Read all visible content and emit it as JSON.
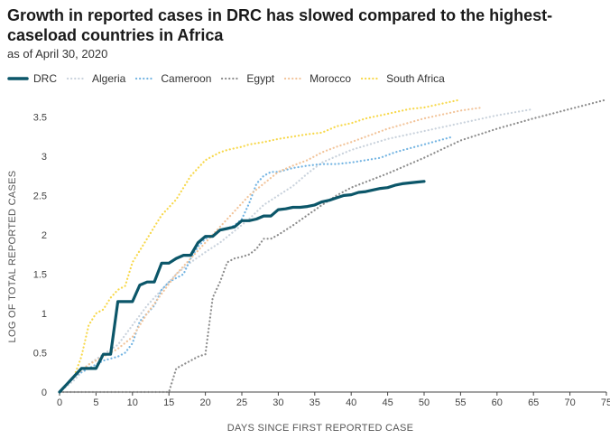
{
  "title": "Growth in reported cases in DRC has slowed compared to the highest-caseload countries in Africa",
  "subtitle": "as of April 30, 2020",
  "colors": {
    "DRC": "#0b5669",
    "Algeria": "#c9d2dc",
    "Cameroon": "#73b4e2",
    "Egypt": "#8c8c8c",
    "Morocco": "#f2c49a",
    "South Africa": "#f7d84a"
  },
  "chart_data": {
    "type": "line",
    "xlabel": "DAYS SINCE FIRST REPORTED CASE",
    "ylabel": "LOG OF TOTAL REPORTED CASES",
    "xlim": [
      0,
      75
    ],
    "ylim": [
      0,
      3.7
    ],
    "xticks": [
      0,
      5,
      10,
      15,
      20,
      25,
      30,
      35,
      40,
      45,
      50,
      55,
      60,
      65,
      70,
      75
    ],
    "yticks": [
      0,
      0.5,
      1,
      1.5,
      2,
      2.5,
      3,
      3.5
    ],
    "ytick_labels": [
      "0",
      "0.5",
      "1",
      "1.5",
      "2",
      "2.5",
      "3",
      "3.5"
    ],
    "grid": false,
    "legend_position": "top",
    "series": [
      {
        "name": "DRC",
        "style": "solid",
        "x": [
          0,
          1,
          2,
          3,
          4,
          5,
          6,
          7,
          8,
          9,
          10,
          11,
          12,
          13,
          14,
          15,
          16,
          17,
          18,
          19,
          20,
          21,
          22,
          23,
          24,
          25,
          26,
          27,
          28,
          29,
          30,
          31,
          32,
          33,
          34,
          35,
          36,
          37,
          38,
          39,
          40,
          41,
          42,
          43,
          44,
          45,
          46,
          47,
          48,
          49,
          50
        ],
        "y": [
          0,
          0.1,
          0.2,
          0.3,
          0.3,
          0.3,
          0.48,
          0.48,
          1.15,
          1.15,
          1.15,
          1.36,
          1.4,
          1.4,
          1.64,
          1.64,
          1.7,
          1.74,
          1.74,
          1.9,
          1.98,
          1.98,
          2.06,
          2.08,
          2.1,
          2.18,
          2.18,
          2.2,
          2.24,
          2.24,
          2.32,
          2.33,
          2.35,
          2.35,
          2.36,
          2.38,
          2.42,
          2.44,
          2.47,
          2.5,
          2.51,
          2.54,
          2.55,
          2.57,
          2.59,
          2.6,
          2.63,
          2.65,
          2.66,
          2.67,
          2.68
        ]
      },
      {
        "name": "Algeria",
        "style": "dotted",
        "x": [
          0,
          2,
          4,
          6,
          8,
          10,
          12,
          14,
          16,
          18,
          20,
          22,
          24,
          26,
          28,
          30,
          32,
          34,
          36,
          38,
          40,
          45,
          50,
          55,
          60,
          65
        ],
        "y": [
          0,
          0.15,
          0.35,
          0.48,
          0.6,
          0.85,
          1.1,
          1.3,
          1.5,
          1.65,
          1.78,
          1.9,
          2.05,
          2.2,
          2.38,
          2.5,
          2.62,
          2.78,
          2.92,
          3.0,
          3.08,
          3.22,
          3.32,
          3.42,
          3.52,
          3.6
        ]
      },
      {
        "name": "Cameroon",
        "style": "dotted",
        "x": [
          0,
          2,
          4,
          6,
          8,
          9,
          10,
          11,
          12,
          13,
          14,
          15,
          16,
          17,
          18,
          19,
          20,
          21,
          22,
          23,
          24,
          25,
          26,
          27,
          28,
          29,
          30,
          32,
          34,
          36,
          38,
          40,
          42,
          44,
          46,
          48,
          50,
          52,
          54
        ],
        "y": [
          0,
          0.2,
          0.3,
          0.4,
          0.45,
          0.5,
          0.62,
          0.9,
          1.0,
          1.1,
          1.3,
          1.4,
          1.45,
          1.5,
          1.7,
          1.85,
          1.95,
          2.0,
          2.05,
          2.08,
          2.12,
          2.2,
          2.4,
          2.65,
          2.75,
          2.8,
          2.8,
          2.85,
          2.88,
          2.9,
          2.9,
          2.92,
          2.95,
          2.98,
          3.05,
          3.1,
          3.15,
          3.2,
          3.25
        ]
      },
      {
        "name": "Egypt",
        "style": "dotted",
        "x": [
          0,
          5,
          10,
          15,
          16,
          17,
          18,
          19,
          20,
          21,
          22,
          23,
          24,
          25,
          26,
          27,
          28,
          29,
          30,
          32,
          34,
          36,
          38,
          40,
          45,
          50,
          55,
          60,
          65,
          70,
          75
        ],
        "y": [
          0,
          0,
          0,
          0,
          0.3,
          0.35,
          0.4,
          0.45,
          0.48,
          1.2,
          1.4,
          1.65,
          1.7,
          1.72,
          1.75,
          1.82,
          1.95,
          1.95,
          2.0,
          2.12,
          2.25,
          2.38,
          2.5,
          2.6,
          2.78,
          2.98,
          3.2,
          3.35,
          3.48,
          3.6,
          3.72
        ]
      },
      {
        "name": "Morocco",
        "style": "dotted",
        "x": [
          0,
          2,
          4,
          6,
          8,
          10,
          12,
          14,
          16,
          18,
          20,
          22,
          24,
          26,
          28,
          30,
          32,
          34,
          36,
          38,
          40,
          45,
          50,
          55,
          58
        ],
        "y": [
          0,
          0.2,
          0.35,
          0.45,
          0.55,
          0.7,
          1.0,
          1.25,
          1.5,
          1.7,
          1.9,
          2.1,
          2.3,
          2.5,
          2.65,
          2.8,
          2.88,
          2.95,
          3.05,
          3.12,
          3.18,
          3.35,
          3.48,
          3.58,
          3.62
        ]
      },
      {
        "name": "South Africa",
        "style": "dotted",
        "x": [
          0,
          1,
          2,
          3,
          4,
          5,
          6,
          7,
          8,
          9,
          10,
          11,
          12,
          13,
          14,
          15,
          16,
          17,
          18,
          19,
          20,
          21,
          22,
          23,
          24,
          25,
          26,
          28,
          30,
          32,
          34,
          36,
          38,
          40,
          42,
          44,
          46,
          48,
          50,
          52,
          54,
          55
        ],
        "y": [
          0,
          0.1,
          0.2,
          0.45,
          0.85,
          1.0,
          1.05,
          1.2,
          1.3,
          1.35,
          1.65,
          1.8,
          1.95,
          2.1,
          2.25,
          2.35,
          2.45,
          2.6,
          2.75,
          2.85,
          2.95,
          3.0,
          3.05,
          3.08,
          3.1,
          3.12,
          3.15,
          3.18,
          3.22,
          3.25,
          3.28,
          3.3,
          3.38,
          3.42,
          3.48,
          3.52,
          3.56,
          3.6,
          3.62,
          3.66,
          3.7,
          3.72
        ]
      }
    ]
  }
}
